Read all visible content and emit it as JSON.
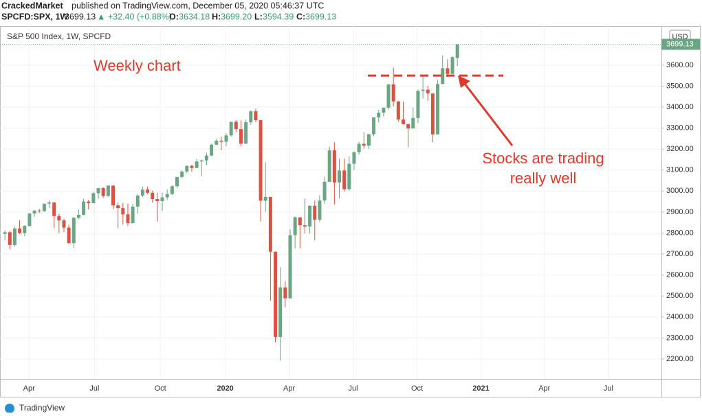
{
  "header": {
    "author": "CrackedMarket",
    "published": "published on TradingView.com, December 05, 2020 05:46:37 UTC",
    "symbol": "SPCFD:SPX, 1W",
    "price": "3699.13",
    "change": "▲ +32.40 (+0.88%)",
    "ohlc": [
      {
        "key": "O:",
        "value": "3634.18"
      },
      {
        "key": "H:",
        "value": "3699.20"
      },
      {
        "key": "L:",
        "value": "3594.39"
      },
      {
        "key": "C:",
        "value": "3699.13"
      }
    ]
  },
  "chart_data": {
    "type": "candlestick",
    "title": "S&P 500 Index, 1W, SPCFD",
    "currency": "USD",
    "up_color": "#6ba583",
    "down_color": "#d75442",
    "grid": true,
    "categories": [
      null,
      null,
      null,
      null,
      null,
      null,
      null,
      null,
      null,
      null,
      null,
      null,
      null,
      null,
      null,
      null,
      null,
      null,
      null,
      null,
      null,
      null,
      null,
      null,
      null,
      null,
      null,
      null,
      null,
      null,
      null,
      null,
      null,
      null,
      null,
      null,
      null,
      null,
      null,
      null,
      null,
      null,
      null,
      null,
      null,
      null,
      null,
      null,
      null,
      null,
      null,
      null,
      null,
      null,
      null,
      null,
      null,
      null,
      null,
      null,
      null,
      null,
      null,
      null,
      null,
      null,
      null,
      null,
      null,
      null,
      null,
      null,
      null,
      null,
      null,
      null,
      null,
      null,
      null,
      null,
      null,
      null,
      null,
      null,
      null,
      null,
      null,
      null,
      null,
      null,
      null,
      null,
      null
    ],
    "open": [
      2796,
      2804,
      2743,
      2822,
      2800,
      2834,
      2893,
      2907,
      2905,
      2940,
      2946,
      2881,
      2860,
      2826,
      2752,
      2873,
      2887,
      2950,
      2942,
      2990,
      3014,
      2977,
      3026,
      2932,
      2919,
      2889,
      2847,
      2926,
      2979,
      3007,
      2992,
      2962,
      2952,
      2970,
      2986,
      3023,
      3067,
      3093,
      3120,
      3110,
      3141,
      3146,
      3169,
      3221,
      3240,
      3235,
      3265,
      3330,
      3295,
      3226,
      3328,
      3380,
      3338,
      2954,
      2972,
      2711,
      2305,
      2541,
      2489,
      2790,
      2875,
      2837,
      2831,
      2930,
      2864,
      2955,
      3044,
      3194,
      3041,
      3098,
      3009,
      3130,
      3185,
      3225,
      3216,
      3271,
      3351,
      3373,
      3397,
      3508,
      3427,
      3341,
      3319,
      3298,
      3348,
      3477,
      3483,
      3465,
      3270,
      3510,
      3585,
      3558,
      3634.18
    ],
    "high": [
      2813,
      2812,
      2830,
      2861,
      2837,
      2895,
      2910,
      2916,
      2940,
      2954,
      2946,
      2892,
      2868,
      2840,
      2876,
      2911,
      2964,
      2958,
      2996,
      3014,
      3018,
      3028,
      3028,
      2945,
      2943,
      2940,
      2940,
      2985,
      3021,
      3022,
      3002,
      2992,
      2993,
      3008,
      3027,
      3068,
      3098,
      3121,
      3127,
      3154,
      3150,
      3183,
      3226,
      3248,
      3259,
      3275,
      3330,
      3338,
      3337,
      3341,
      3385,
      3393,
      3340,
      3137,
      2972,
      2711,
      2637,
      2571,
      2818,
      2879,
      2875,
      2964,
      2933,
      2955,
      2980,
      3068,
      3211,
      3233,
      3155,
      3155,
      3166,
      3189,
      3234,
      3280,
      3272,
      3352,
      3387,
      3399,
      3509,
      3588,
      3429,
      3425,
      3320,
      3398,
      3483,
      3550,
      3502,
      3465,
      3529,
      3646,
      3628,
      3644,
      3699.2
    ],
    "low": [
      2765,
      2722,
      2735,
      2795,
      2785,
      2830,
      2876,
      2896,
      2901,
      2919,
      2825,
      2800,
      2805,
      2750,
      2729,
      2865,
      2884,
      2913,
      2942,
      2963,
      2967,
      2972,
      2914,
      2822,
      2840,
      2834,
      2846,
      2893,
      2972,
      2985,
      2945,
      2855,
      2905,
      2957,
      2981,
      3014,
      3061,
      3084,
      3091,
      3109,
      3070,
      3124,
      3166,
      3220,
      3195,
      3213,
      3260,
      3280,
      3214,
      3224,
      3316,
      3328,
      2855,
      2901,
      2478,
      2280,
      2192,
      2447,
      2489,
      2727,
      2727,
      2797,
      2797,
      2766,
      2853,
      2939,
      3043,
      2936,
      2965,
      2999,
      3002,
      3101,
      3173,
      3202,
      3200,
      3261,
      3327,
      3355,
      3388,
      3403,
      3330,
      3317,
      3209,
      3298,
      3323,
      3441,
      3430,
      3233,
      3270,
      3510,
      3543,
      3558,
      3594.39
    ],
    "close": [
      2804,
      2743,
      2822,
      2800,
      2834,
      2893,
      2907,
      2905,
      2940,
      2946,
      2881,
      2860,
      2826,
      2752,
      2873,
      2887,
      2950,
      2942,
      2990,
      3014,
      2977,
      3026,
      2932,
      2919,
      2889,
      2847,
      2926,
      2979,
      3007,
      2992,
      2962,
      2952,
      2970,
      2986,
      3023,
      3067,
      3093,
      3120,
      3110,
      3141,
      3146,
      3169,
      3221,
      3240,
      3235,
      3265,
      3330,
      3295,
      3226,
      3328,
      3380,
      3338,
      2954,
      2972,
      2711,
      2305,
      2541,
      2489,
      2790,
      2875,
      2837,
      2831,
      2930,
      2864,
      2955,
      3044,
      3194,
      3041,
      3098,
      3009,
      3130,
      3185,
      3225,
      3216,
      3271,
      3351,
      3373,
      3397,
      3508,
      3427,
      3341,
      3319,
      3298,
      3348,
      3477,
      3483,
      3465,
      3270,
      3510,
      3585,
      3558,
      3638,
      3699.13
    ],
    "xlim": [
      -1,
      133.5
    ],
    "xticks": [
      {
        "value": 4.9,
        "label": "Apr"
      },
      {
        "value": 18.2,
        "label": "Jul"
      },
      {
        "value": 31.6,
        "label": "Oct"
      },
      {
        "value": 44.8,
        "label": "2020"
      },
      {
        "value": 57.8,
        "label": "Apr"
      },
      {
        "value": 70.8,
        "label": "Jul"
      },
      {
        "value": 83.8,
        "label": "Oct"
      },
      {
        "value": 96.8,
        "label": "2021"
      },
      {
        "value": 109.7,
        "label": "Apr"
      },
      {
        "value": 122.7,
        "label": "Jul"
      }
    ],
    "ylim": [
      2105,
      3786
    ],
    "yticks": [
      {
        "value": 2200,
        "label": "2200.00"
      },
      {
        "value": 2300,
        "label": "2300.00"
      },
      {
        "value": 2400,
        "label": "2400.00"
      },
      {
        "value": 2500,
        "label": "2500.00"
      },
      {
        "value": 2600,
        "label": "2600.00"
      },
      {
        "value": 2700,
        "label": "2700.00"
      },
      {
        "value": 2800,
        "label": "2800.00"
      },
      {
        "value": 2900,
        "label": "2900.00"
      },
      {
        "value": 3000,
        "label": "3000.00"
      },
      {
        "value": 3100,
        "label": "3100.00"
      },
      {
        "value": 3200,
        "label": "3200.00"
      },
      {
        "value": 3300,
        "label": "3300.00"
      },
      {
        "value": 3400,
        "label": "3400.00"
      },
      {
        "value": 3500,
        "label": "3500.00"
      },
      {
        "value": 3600,
        "label": "3600.00"
      }
    ],
    "level": 3550,
    "annotations": [
      "Weekly chart",
      "Stocks are trading",
      "really well"
    ]
  },
  "footer": "TradingView"
}
